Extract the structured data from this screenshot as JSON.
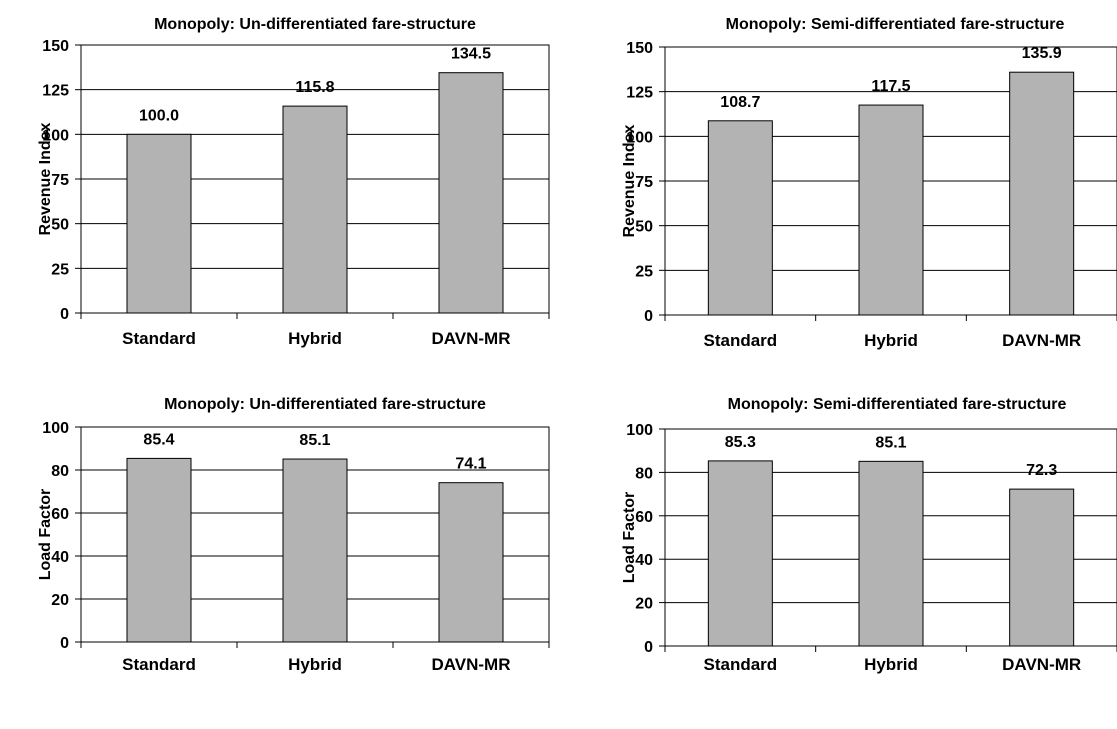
{
  "chart_data": [
    {
      "type": "bar",
      "title": "Monopoly: Un-differentiated fare-structure",
      "ylabel": "Revenue Index",
      "categories": [
        "Standard",
        "Hybrid",
        "DAVN-MR"
      ],
      "values": [
        100.0,
        115.8,
        134.5
      ],
      "data_labels": [
        "100.0",
        "115.8",
        "134.5"
      ],
      "ylim": [
        0,
        150
      ],
      "yticks": [
        0,
        25,
        50,
        75,
        100,
        125,
        150
      ],
      "grid": true,
      "bar_color": "#b3b3b3"
    },
    {
      "type": "bar",
      "title": "Monopoly: Semi-differentiated fare-structure",
      "ylabel": "Revenue Index",
      "categories": [
        "Standard",
        "Hybrid",
        "DAVN-MR"
      ],
      "values": [
        108.7,
        117.5,
        135.9
      ],
      "data_labels": [
        "108.7",
        "117.5",
        "135.9"
      ],
      "ylim": [
        0,
        150
      ],
      "yticks": [
        0,
        25,
        50,
        75,
        100,
        125,
        150
      ],
      "grid": true,
      "bar_color": "#b3b3b3"
    },
    {
      "type": "bar",
      "title": "Monopoly: Un-differentiated fare-structure",
      "ylabel": "Load Factor",
      "categories": [
        "Standard",
        "Hybrid",
        "DAVN-MR"
      ],
      "values": [
        85.4,
        85.1,
        74.1
      ],
      "data_labels": [
        "85.4",
        "85.1",
        "74.1"
      ],
      "ylim": [
        0,
        100
      ],
      "yticks": [
        0,
        20,
        40,
        60,
        80,
        100
      ],
      "grid": true,
      "bar_color": "#b3b3b3"
    },
    {
      "type": "bar",
      "title": "Monopoly: Semi-differentiated fare-structure",
      "ylabel": "Load Factor",
      "categories": [
        "Standard",
        "Hybrid",
        "DAVN-MR"
      ],
      "values": [
        85.3,
        85.1,
        72.3
      ],
      "data_labels": [
        "85.3",
        "85.1",
        "72.3"
      ],
      "ylim": [
        0,
        100
      ],
      "yticks": [
        0,
        20,
        40,
        60,
        80,
        100
      ],
      "grid": true,
      "bar_color": "#b3b3b3"
    }
  ]
}
